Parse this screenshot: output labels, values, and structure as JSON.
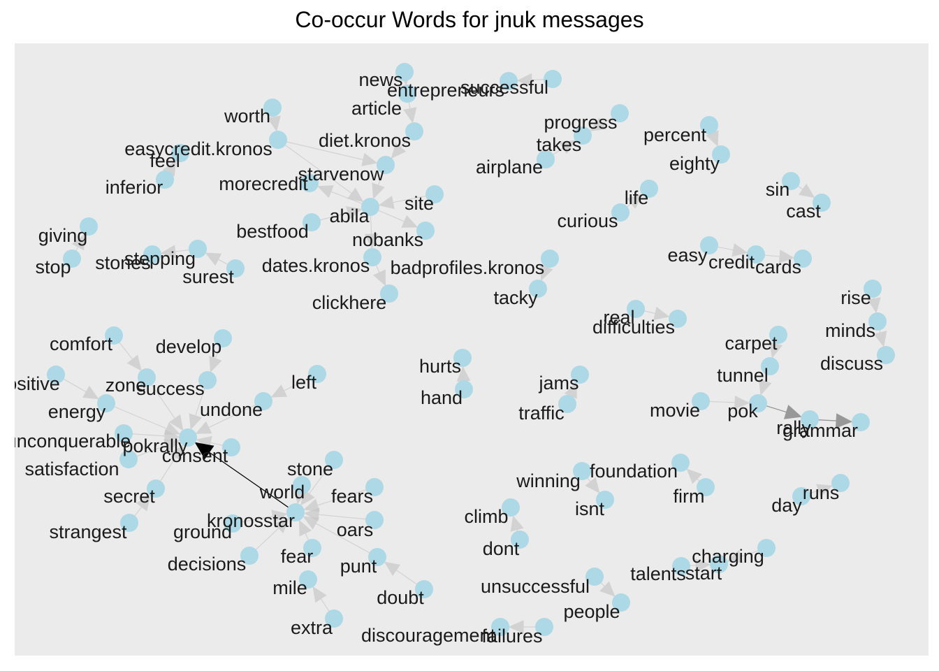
{
  "title": "Co-occur Words for jnuk messages",
  "colors": {
    "panel": "#ebebeb",
    "node": "#add8e6",
    "edge_light": "#c8c8c8",
    "edge_mid": "#8a8a8a",
    "edge_dark": "#000000"
  },
  "nodes": [
    {
      "id": "news",
      "label": "news"
    },
    {
      "id": "entrepreneurs",
      "label": "entrepreneurs"
    },
    {
      "id": "successful",
      "label": "successful"
    },
    {
      "id": "article",
      "label": "article"
    },
    {
      "id": "worth",
      "label": "worth"
    },
    {
      "id": "easycredit_kronos",
      "label": "easycredit.kronos"
    },
    {
      "id": "diet_kronos",
      "label": "diet.kronos"
    },
    {
      "id": "feel",
      "label": "feel"
    },
    {
      "id": "starvenow",
      "label": "starvenow"
    },
    {
      "id": "inferior",
      "label": "inferior"
    },
    {
      "id": "morecredit",
      "label": "morecredit"
    },
    {
      "id": "abila",
      "label": "abila"
    },
    {
      "id": "site",
      "label": "site"
    },
    {
      "id": "bestfood",
      "label": "bestfood"
    },
    {
      "id": "nobanks",
      "label": "nobanks"
    },
    {
      "id": "dates_kronos",
      "label": "dates.kronos"
    },
    {
      "id": "clickhere",
      "label": "clickhere"
    },
    {
      "id": "progress",
      "label": "progress"
    },
    {
      "id": "takes",
      "label": "takes"
    },
    {
      "id": "airplane",
      "label": "airplane"
    },
    {
      "id": "percent",
      "label": "percent"
    },
    {
      "id": "eighty",
      "label": "eighty"
    },
    {
      "id": "life",
      "label": "life"
    },
    {
      "id": "curious",
      "label": "curious"
    },
    {
      "id": "sin",
      "label": "sin"
    },
    {
      "id": "cast",
      "label": "cast"
    },
    {
      "id": "giving",
      "label": "giving"
    },
    {
      "id": "stop",
      "label": "stop"
    },
    {
      "id": "stones",
      "label": "stones"
    },
    {
      "id": "stepping",
      "label": "stepping"
    },
    {
      "id": "surest",
      "label": "surest"
    },
    {
      "id": "badprofiles_kronos",
      "label": "badprofiles.kronos"
    },
    {
      "id": "tacky",
      "label": "tacky"
    },
    {
      "id": "easy",
      "label": "easy"
    },
    {
      "id": "credit",
      "label": "credit"
    },
    {
      "id": "cards",
      "label": "cards"
    },
    {
      "id": "real",
      "label": "real"
    },
    {
      "id": "difficulties",
      "label": "difficulties"
    },
    {
      "id": "rise",
      "label": "rise"
    },
    {
      "id": "minds",
      "label": "minds"
    },
    {
      "id": "discuss",
      "label": "discuss"
    },
    {
      "id": "carpet",
      "label": "carpet"
    },
    {
      "id": "tunnel",
      "label": "tunnel"
    },
    {
      "id": "movie",
      "label": "movie"
    },
    {
      "id": "pok",
      "label": "pok"
    },
    {
      "id": "rally",
      "label": "rally"
    },
    {
      "id": "grammar",
      "label": "grammar"
    },
    {
      "id": "comfort",
      "label": "comfort"
    },
    {
      "id": "develop",
      "label": "develop"
    },
    {
      "id": "positive",
      "label": "positive"
    },
    {
      "id": "zone",
      "label": "zone"
    },
    {
      "id": "success",
      "label": "success"
    },
    {
      "id": "left",
      "label": "left"
    },
    {
      "id": "energy",
      "label": "energy"
    },
    {
      "id": "undone",
      "label": "undone"
    },
    {
      "id": "unconquerable",
      "label": "unconquerable"
    },
    {
      "id": "pokrally",
      "label": "pokrally"
    },
    {
      "id": "consent",
      "label": "consent"
    },
    {
      "id": "satisfaction",
      "label": "satisfaction"
    },
    {
      "id": "secret",
      "label": "secret"
    },
    {
      "id": "strangest",
      "label": "strangest"
    },
    {
      "id": "hurts",
      "label": "hurts"
    },
    {
      "id": "hand",
      "label": "hand"
    },
    {
      "id": "jams",
      "label": "jams"
    },
    {
      "id": "traffic",
      "label": "traffic"
    },
    {
      "id": "stone",
      "label": "stone"
    },
    {
      "id": "world",
      "label": "world"
    },
    {
      "id": "fears",
      "label": "fears"
    },
    {
      "id": "kronosstar",
      "label": "kronosstar"
    },
    {
      "id": "oars",
      "label": "oars"
    },
    {
      "id": "ground",
      "label": "ground"
    },
    {
      "id": "fear",
      "label": "fear"
    },
    {
      "id": "decisions",
      "label": "decisions"
    },
    {
      "id": "punt",
      "label": "punt"
    },
    {
      "id": "mile",
      "label": "mile"
    },
    {
      "id": "doubt",
      "label": "doubt"
    },
    {
      "id": "extra",
      "label": "extra"
    },
    {
      "id": "discouragement",
      "label": "discouragement"
    },
    {
      "id": "failures",
      "label": "failures"
    },
    {
      "id": "winning",
      "label": "winning"
    },
    {
      "id": "foundation",
      "label": "foundation"
    },
    {
      "id": "isnt",
      "label": "isnt"
    },
    {
      "id": "firm",
      "label": "firm"
    },
    {
      "id": "climb",
      "label": "climb"
    },
    {
      "id": "dont",
      "label": "dont"
    },
    {
      "id": "day",
      "label": "day"
    },
    {
      "id": "runs",
      "label": "runs"
    },
    {
      "id": "charging",
      "label": "charging"
    },
    {
      "id": "talents",
      "label": "talents"
    },
    {
      "id": "start",
      "label": "start"
    },
    {
      "id": "unsuccessful",
      "label": "unsuccessful"
    },
    {
      "id": "people",
      "label": "people"
    }
  ],
  "edges": [
    {
      "from": "successful",
      "to": "entrepreneurs",
      "weight": "light"
    },
    {
      "from": "news",
      "to": "article",
      "weight": "light"
    },
    {
      "from": "article",
      "to": "diet_kronos",
      "weight": "light"
    },
    {
      "from": "diet_kronos",
      "to": "starvenow",
      "weight": "light"
    },
    {
      "from": "starvenow",
      "to": "abila",
      "weight": "light"
    },
    {
      "from": "worth",
      "to": "easycredit_kronos",
      "weight": "light"
    },
    {
      "from": "easycredit_kronos",
      "to": "starvenow",
      "weight": "light"
    },
    {
      "from": "easycredit_kronos",
      "to": "abila",
      "weight": "light"
    },
    {
      "from": "inferior",
      "to": "feel",
      "weight": "light"
    },
    {
      "from": "site",
      "to": "abila",
      "weight": "light"
    },
    {
      "from": "abila",
      "to": "nobanks",
      "weight": "light"
    },
    {
      "from": "abila",
      "to": "morecredit",
      "weight": "light"
    },
    {
      "from": "bestfood",
      "to": "abila",
      "weight": "light"
    },
    {
      "from": "abila",
      "to": "dates_kronos",
      "weight": "light"
    },
    {
      "from": "dates_kronos",
      "to": "clickhere",
      "weight": "light"
    },
    {
      "from": "progress",
      "to": "takes",
      "weight": "light"
    },
    {
      "from": "airplane",
      "to": "takes",
      "weight": "light"
    },
    {
      "from": "percent",
      "to": "eighty",
      "weight": "light"
    },
    {
      "from": "curious",
      "to": "life",
      "weight": "light"
    },
    {
      "from": "sin",
      "to": "cast",
      "weight": "light"
    },
    {
      "from": "stop",
      "to": "giving",
      "weight": "light"
    },
    {
      "from": "stepping",
      "to": "stones",
      "weight": "light"
    },
    {
      "from": "surest",
      "to": "stepping",
      "weight": "light"
    },
    {
      "from": "badprofiles_kronos",
      "to": "tacky",
      "weight": "light"
    },
    {
      "from": "easy",
      "to": "credit",
      "weight": "light"
    },
    {
      "from": "credit",
      "to": "cards",
      "weight": "light"
    },
    {
      "from": "real",
      "to": "difficulties",
      "weight": "light"
    },
    {
      "from": "rise",
      "to": "minds",
      "weight": "light"
    },
    {
      "from": "minds",
      "to": "discuss",
      "weight": "light"
    },
    {
      "from": "carpet",
      "to": "tunnel",
      "weight": "light"
    },
    {
      "from": "tunnel",
      "to": "pok",
      "weight": "light"
    },
    {
      "from": "movie",
      "to": "pok",
      "weight": "light"
    },
    {
      "from": "pok",
      "to": "rally",
      "weight": "mid"
    },
    {
      "from": "rally",
      "to": "grammar",
      "weight": "mid"
    },
    {
      "from": "comfort",
      "to": "zone",
      "weight": "light"
    },
    {
      "from": "develop",
      "to": "success",
      "weight": "light"
    },
    {
      "from": "positive",
      "to": "energy",
      "weight": "light"
    },
    {
      "from": "zone",
      "to": "pokrally",
      "weight": "light"
    },
    {
      "from": "success",
      "to": "pokrally",
      "weight": "light"
    },
    {
      "from": "left",
      "to": "undone",
      "weight": "light"
    },
    {
      "from": "undone",
      "to": "pokrally",
      "weight": "light"
    },
    {
      "from": "energy",
      "to": "pokrally",
      "weight": "light"
    },
    {
      "from": "unconquerable",
      "to": "pokrally",
      "weight": "light"
    },
    {
      "from": "satisfaction",
      "to": "pokrally",
      "weight": "light"
    },
    {
      "from": "secret",
      "to": "pokrally",
      "weight": "light"
    },
    {
      "from": "strangest",
      "to": "secret",
      "weight": "light"
    },
    {
      "from": "consent",
      "to": "pokrally",
      "weight": "light"
    },
    {
      "from": "kronosstar",
      "to": "pokrally",
      "weight": "dark"
    },
    {
      "from": "hand",
      "to": "hurts",
      "weight": "light"
    },
    {
      "from": "traffic",
      "to": "jams",
      "weight": "light"
    },
    {
      "from": "stone",
      "to": "kronosstar",
      "weight": "light"
    },
    {
      "from": "world",
      "to": "kronosstar",
      "weight": "light"
    },
    {
      "from": "fears",
      "to": "kronosstar",
      "weight": "light"
    },
    {
      "from": "oars",
      "to": "kronosstar",
      "weight": "light"
    },
    {
      "from": "ground",
      "to": "kronosstar",
      "weight": "light"
    },
    {
      "from": "fear",
      "to": "kronosstar",
      "weight": "light"
    },
    {
      "from": "decisions",
      "to": "kronosstar",
      "weight": "light"
    },
    {
      "from": "punt",
      "to": "kronosstar",
      "weight": "light"
    },
    {
      "from": "doubt",
      "to": "punt",
      "weight": "light"
    },
    {
      "from": "extra",
      "to": "mile",
      "weight": "light"
    },
    {
      "from": "failures",
      "to": "discouragement",
      "weight": "light"
    },
    {
      "from": "winning",
      "to": "isnt",
      "weight": "light"
    },
    {
      "from": "firm",
      "to": "foundation",
      "weight": "light"
    },
    {
      "from": "dont",
      "to": "climb",
      "weight": "light"
    },
    {
      "from": "day",
      "to": "runs",
      "weight": "light"
    },
    {
      "from": "charging",
      "to": "start",
      "weight": "light"
    },
    {
      "from": "talents",
      "to": "start",
      "weight": "light"
    },
    {
      "from": "unsuccessful",
      "to": "people",
      "weight": "light"
    }
  ]
}
